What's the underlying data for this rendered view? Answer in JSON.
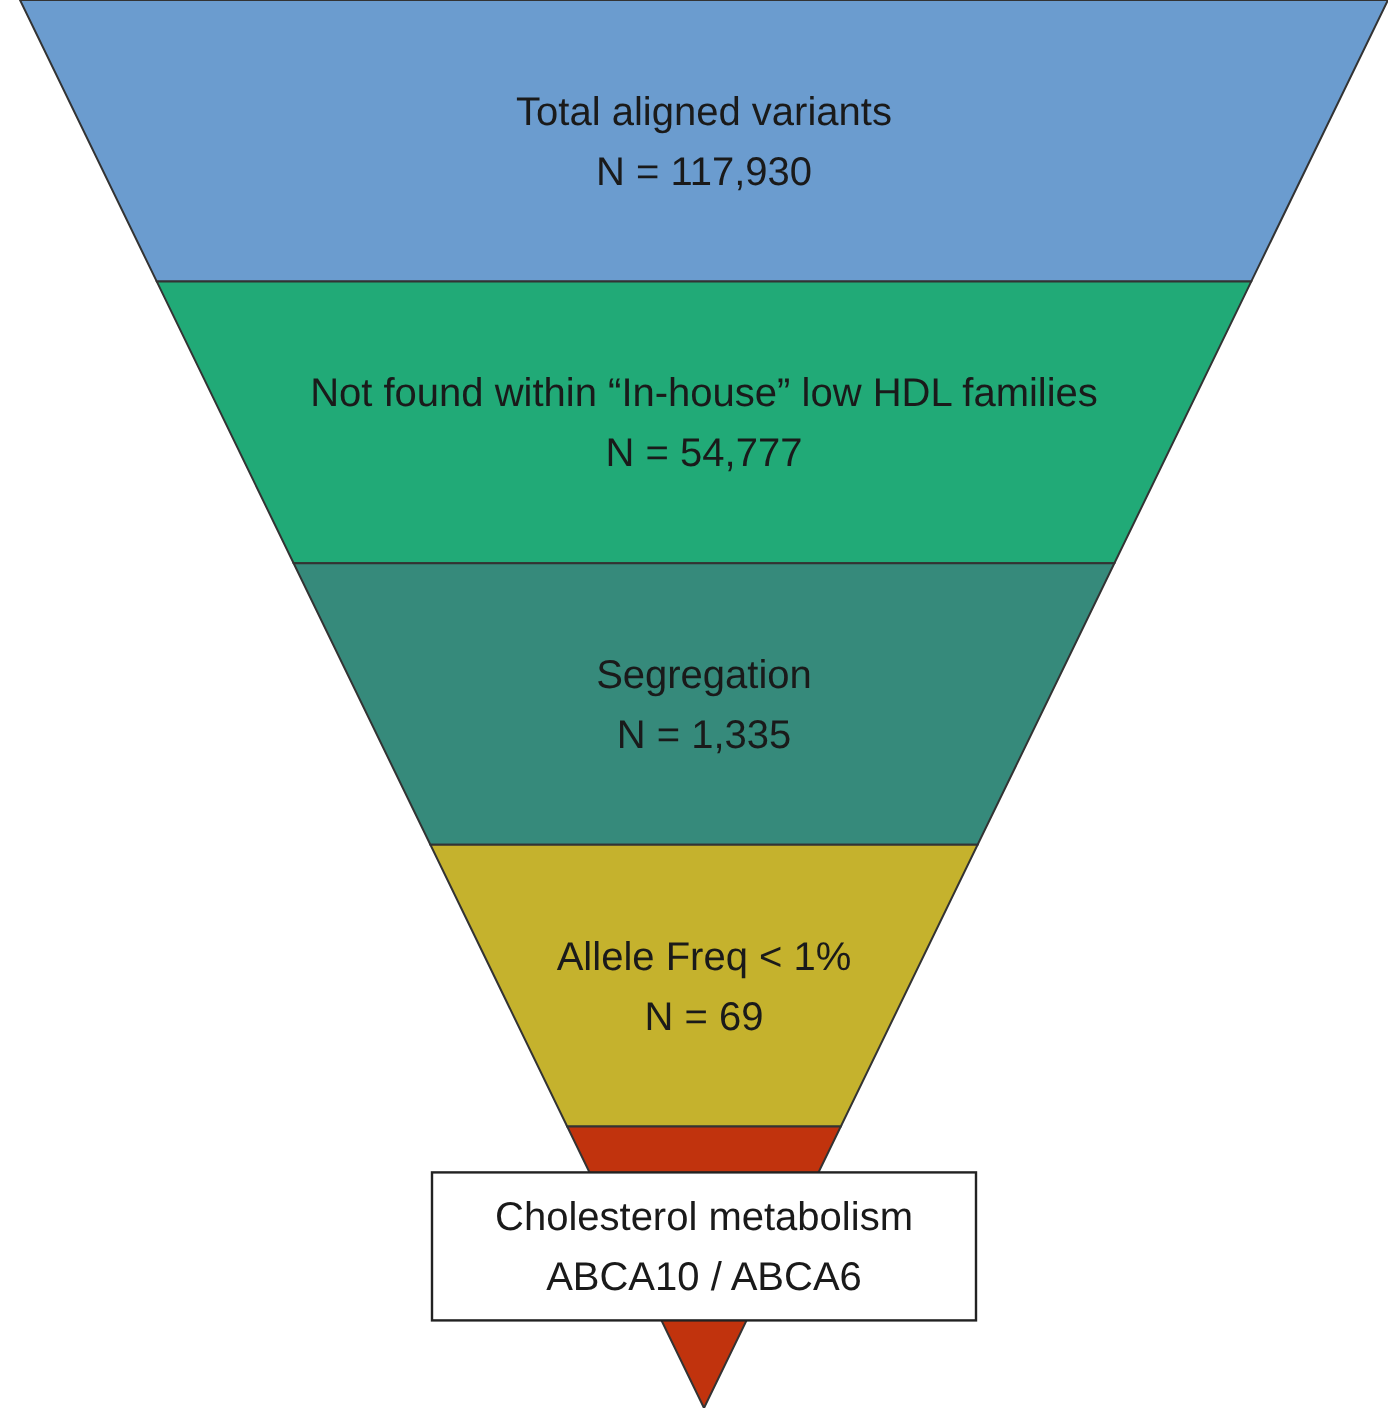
{
  "chart_data": {
    "type": "other",
    "categories": [
      "Total aligned variants",
      "Not found within “In-house” low HDL families",
      "Segregation",
      "Allele Freq < 1%",
      "Cholesterol metabolism\nABCA10 / ABCA6"
    ],
    "values": [
      117930,
      54777,
      1335,
      69,
      null
    ],
    "value_labels": [
      "N = 117,930",
      "N = 54,777",
      "N = 1,335",
      "N = 69",
      null
    ],
    "colors": [
      "#6b9ccf",
      "#21aa77",
      "#368a7b",
      "#c5b22d",
      "#c1330d"
    ]
  }
}
